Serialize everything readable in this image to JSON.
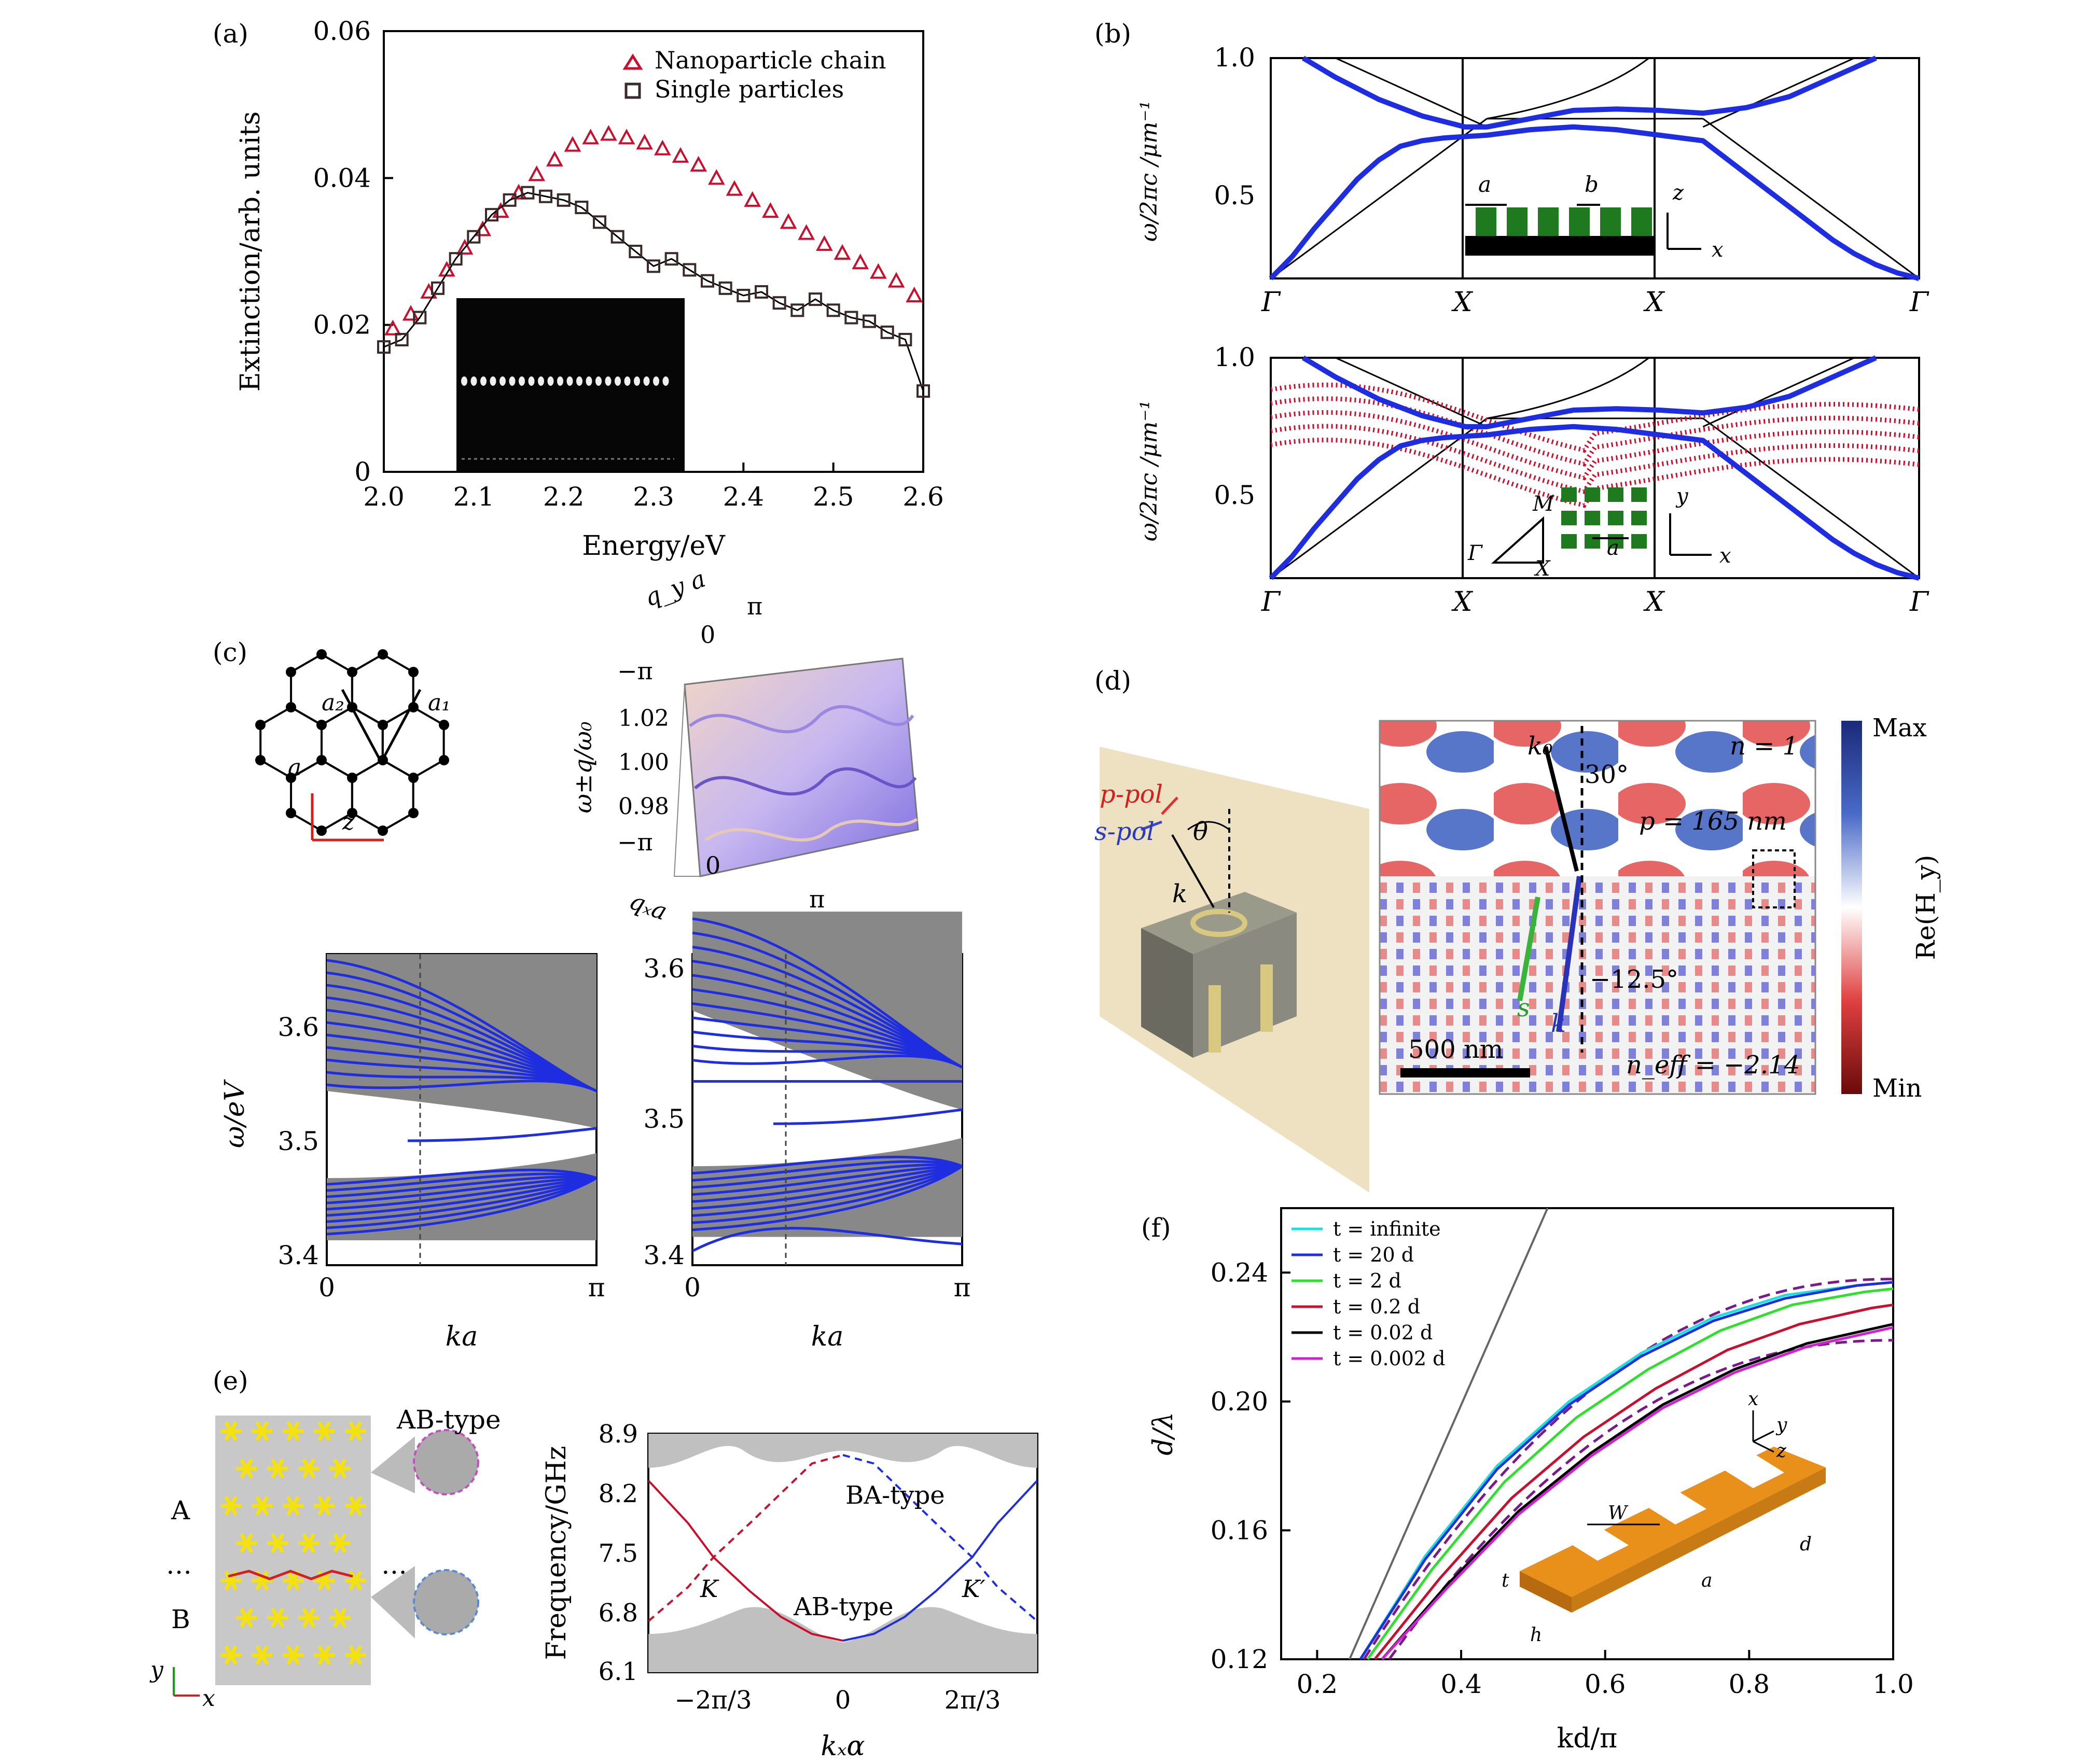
{
  "panels": {
    "a": "(a)",
    "b": "(b)",
    "c": "(c)",
    "d": "(d)",
    "e": "(e)",
    "f": "(f)"
  },
  "colors": {
    "red": "#c8102e",
    "blue": "#1f2de0",
    "grey": "#c0c0c0",
    "green": "#1a7f1a",
    "purple": "#7a1a8a",
    "cyan": "#19e0e0",
    "lime": "#2ee02e",
    "magenta": "#d020d0",
    "orange": "#e8901a"
  },
  "chart_data": [
    {
      "id": "a",
      "type": "scatter",
      "xlabel": "Energy/eV",
      "ylabel": "Extinction/arb. units",
      "xlim": [
        2.0,
        2.6
      ],
      "ylim": [
        0,
        0.06
      ],
      "xticks": [
        "2.0",
        "2.1",
        "2.2",
        "2.3",
        "2.4",
        "2.5",
        "2.6"
      ],
      "yticks": [
        "0",
        "0.02",
        "0.04",
        "0.06"
      ],
      "legend": [
        "Nanoparticle chain",
        "Single particles"
      ],
      "legend_position": "top-right",
      "series": [
        {
          "name": "Nanoparticle chain",
          "marker": "triangle",
          "x": [
            2.01,
            2.03,
            2.05,
            2.07,
            2.09,
            2.11,
            2.13,
            2.15,
            2.17,
            2.19,
            2.21,
            2.23,
            2.25,
            2.27,
            2.29,
            2.31,
            2.33,
            2.35,
            2.37,
            2.39,
            2.41,
            2.43,
            2.45,
            2.47,
            2.49,
            2.51,
            2.53,
            2.55,
            2.57,
            2.59
          ],
          "y": [
            0.0195,
            0.0215,
            0.0245,
            0.0275,
            0.0305,
            0.033,
            0.0355,
            0.038,
            0.0405,
            0.0425,
            0.0445,
            0.0455,
            0.046,
            0.0455,
            0.0448,
            0.044,
            0.043,
            0.0418,
            0.04,
            0.0385,
            0.037,
            0.0355,
            0.034,
            0.0325,
            0.031,
            0.0298,
            0.0285,
            0.0272,
            0.026,
            0.024
          ]
        },
        {
          "name": "Single particles",
          "marker": "square",
          "x": [
            2.0,
            2.02,
            2.04,
            2.06,
            2.08,
            2.1,
            2.12,
            2.14,
            2.16,
            2.18,
            2.2,
            2.22,
            2.24,
            2.26,
            2.28,
            2.3,
            2.32,
            2.34,
            2.36,
            2.38,
            2.4,
            2.42,
            2.44,
            2.46,
            2.48,
            2.5,
            2.52,
            2.54,
            2.56,
            2.58,
            2.6
          ],
          "y": [
            0.017,
            0.018,
            0.021,
            0.025,
            0.029,
            0.032,
            0.035,
            0.037,
            0.038,
            0.0375,
            0.037,
            0.036,
            0.034,
            0.032,
            0.03,
            0.028,
            0.029,
            0.0275,
            0.026,
            0.025,
            0.024,
            0.0245,
            0.023,
            0.022,
            0.0235,
            0.022,
            0.021,
            0.0205,
            0.019,
            0.018,
            0.011
          ]
        }
      ],
      "inset": "SEM image of nanoparticle chain"
    },
    {
      "id": "b-top",
      "type": "line",
      "ylabel": "ω/2πc /μm⁻¹",
      "ylim": [
        0.2,
        1.0
      ],
      "yticks": [
        "0.5",
        "1.0"
      ],
      "xticks": [
        "Γ",
        "X",
        "X",
        "Γ"
      ],
      "inset_labels": [
        "a",
        "b",
        "z",
        "x"
      ],
      "series": [
        {
          "name": "band1",
          "color": "blue",
          "x": [
            0,
            0.1,
            0.2,
            0.3,
            0.4,
            0.5,
            0.6,
            0.7,
            0.8,
            0.9,
            1.0,
            1.2,
            1.4,
            1.6,
            1.8,
            2.0,
            2.1,
            2.2,
            2.3,
            2.4,
            2.5,
            2.6,
            2.7,
            2.8,
            2.9,
            3.0
          ],
          "y": [
            0.2,
            0.28,
            0.38,
            0.47,
            0.56,
            0.63,
            0.68,
            0.7,
            0.71,
            0.715,
            0.72,
            0.74,
            0.75,
            0.74,
            0.72,
            0.7,
            0.64,
            0.58,
            0.52,
            0.46,
            0.4,
            0.34,
            0.29,
            0.25,
            0.22,
            0.2
          ]
        },
        {
          "name": "band2",
          "color": "blue",
          "x": [
            0.15,
            0.3,
            0.5,
            0.7,
            0.9,
            1.0,
            1.2,
            1.4,
            1.6,
            1.8,
            2.0,
            2.2,
            2.4,
            2.6,
            2.8
          ],
          "y": [
            1.0,
            0.93,
            0.85,
            0.79,
            0.75,
            0.75,
            0.78,
            0.81,
            0.815,
            0.81,
            0.8,
            0.82,
            0.86,
            0.93,
            1.0
          ]
        }
      ]
    },
    {
      "id": "b-bottom",
      "type": "line",
      "ylabel": "ω/2πc /μm⁻¹",
      "ylim": [
        0.2,
        1.0
      ],
      "yticks": [
        "0.5",
        "1.0"
      ],
      "xticks": [
        "Γ",
        "X",
        "X",
        "Γ"
      ],
      "inset_labels": [
        "M",
        "Γ",
        "X",
        "a",
        "y",
        "x"
      ]
    },
    {
      "id": "c-3d",
      "type": "surface",
      "xlabel": "qₓa",
      "ylabel": "q_y a",
      "zlabel": "ω±q/ω₀",
      "zticks": [
        "0.98",
        "1.00",
        "1.02"
      ],
      "xticks_3d": [
        "−π",
        "0",
        "π"
      ],
      "yticks_3d": [
        "0",
        "π",
        "−π"
      ]
    },
    {
      "id": "c-left",
      "type": "line",
      "ylabel": "ω/eV",
      "xlabel": "ka",
      "ylim": [
        3.4,
        3.65
      ],
      "yticks": [
        "3.4",
        "3.5",
        "3.6"
      ],
      "xticks": [
        "0",
        "π"
      ]
    },
    {
      "id": "c-right",
      "type": "line",
      "xlabel": "ka",
      "ylim": [
        3.4,
        3.62
      ],
      "yticks": [
        "3.4",
        "3.5",
        "3.6"
      ],
      "xticks": [
        "0",
        "π"
      ]
    },
    {
      "id": "e",
      "type": "line",
      "xlabel": "kₓα",
      "ylabel": "Frequency/GHz",
      "ylim": [
        6.1,
        8.9
      ],
      "yticks": [
        "6.1",
        "6.8",
        "7.5",
        "8.2",
        "8.9"
      ],
      "xticks": [
        "−2π/3",
        "0",
        "2π/3"
      ],
      "annotations": [
        "BA-type",
        "AB-type",
        "K",
        "K′"
      ],
      "series": [
        {
          "name": "AB-red-solid",
          "color": "red",
          "x": [
            -3.14,
            -2.5,
            -2.09,
            -1.5,
            -1.0,
            -0.5,
            0
          ],
          "y": [
            8.35,
            7.85,
            7.45,
            7.05,
            6.75,
            6.55,
            6.47
          ]
        },
        {
          "name": "AB-blue-solid",
          "color": "blue",
          "x": [
            0,
            0.5,
            1.0,
            1.5,
            2.09,
            2.5,
            3.14
          ],
          "y": [
            6.47,
            6.55,
            6.75,
            7.05,
            7.45,
            7.85,
            8.35
          ]
        },
        {
          "name": "BA-red-dashed",
          "color": "red",
          "x": [
            -3.14,
            -2.5,
            -2.09,
            -1.5,
            -1.0,
            -0.5,
            0
          ],
          "y": [
            6.7,
            7.1,
            7.45,
            7.85,
            8.2,
            8.55,
            8.65
          ]
        },
        {
          "name": "BA-blue-dashed",
          "color": "blue",
          "x": [
            0,
            0.5,
            1.0,
            1.5,
            2.09,
            2.5,
            3.14
          ],
          "y": [
            8.65,
            8.55,
            8.2,
            7.85,
            7.45,
            7.1,
            6.7
          ]
        }
      ]
    },
    {
      "id": "f",
      "type": "line",
      "xlabel": "kd/π",
      "ylabel": "d/λ",
      "xlim": [
        0.15,
        1.0
      ],
      "ylim": [
        0.12,
        0.26
      ],
      "xticks": [
        "0.2",
        "0.4",
        "0.6",
        "0.8",
        "1.0"
      ],
      "yticks": [
        "0.12",
        "0.16",
        "0.20",
        "0.24"
      ],
      "legend_position": "top-left",
      "series": [
        {
          "name": "t = infinite",
          "color": "cyan",
          "x": [
            0.26,
            0.35,
            0.45,
            0.55,
            0.65,
            0.75,
            0.85,
            0.95,
            1.0
          ],
          "y": [
            0.12,
            0.152,
            0.18,
            0.2,
            0.215,
            0.226,
            0.233,
            0.236,
            0.237
          ]
        },
        {
          "name": "t = 20 d",
          "color": "blue",
          "x": [
            0.26,
            0.35,
            0.45,
            0.55,
            0.65,
            0.75,
            0.85,
            0.95,
            1.0
          ],
          "y": [
            0.12,
            0.151,
            0.179,
            0.199,
            0.214,
            0.225,
            0.232,
            0.236,
            0.237
          ]
        },
        {
          "name": "t = 2 d",
          "color": "lime",
          "x": [
            0.27,
            0.36,
            0.46,
            0.56,
            0.66,
            0.76,
            0.86,
            0.96,
            1.0
          ],
          "y": [
            0.12,
            0.148,
            0.175,
            0.195,
            0.21,
            0.222,
            0.23,
            0.234,
            0.235
          ]
        },
        {
          "name": "t = 0.2 d",
          "color": "red",
          "x": [
            0.28,
            0.37,
            0.47,
            0.57,
            0.67,
            0.77,
            0.87,
            0.97,
            1.0
          ],
          "y": [
            0.12,
            0.145,
            0.17,
            0.189,
            0.204,
            0.216,
            0.224,
            0.229,
            0.23
          ]
        },
        {
          "name": "t = 0.02 d",
          "color": "black",
          "x": [
            0.29,
            0.38,
            0.48,
            0.58,
            0.68,
            0.78,
            0.88,
            0.98,
            1.0
          ],
          "y": [
            0.12,
            0.143,
            0.166,
            0.184,
            0.199,
            0.21,
            0.218,
            0.223,
            0.224
          ]
        },
        {
          "name": "t = 0.002 d",
          "color": "magenta",
          "x": [
            0.29,
            0.38,
            0.48,
            0.58,
            0.68,
            0.78,
            0.88,
            0.98,
            1.0
          ],
          "y": [
            0.12,
            0.142,
            0.165,
            0.183,
            0.198,
            0.209,
            0.217,
            0.222,
            0.223
          ]
        }
      ],
      "inset_labels": [
        "x",
        "y",
        "z",
        "W",
        "t",
        "h",
        "a",
        "d"
      ]
    }
  ],
  "d": {
    "labels": {
      "p_pol": "p-pol",
      "s_pol": "s-pol",
      "theta": "θ",
      "k": "k",
      "k0": "k₀",
      "angle30": "30°",
      "n": "n = 1",
      "period": "p = 165 nm",
      "angle_neg": "−12.5°",
      "s": "s",
      "k_low": "k",
      "scale": "500 nm",
      "neff": "n_eff = −2.14",
      "max": "Max",
      "min": "Min",
      "colorbar": "Re(H_y)"
    }
  },
  "e_inset": {
    "title": "AB-type",
    "A": "A",
    "dots": "…",
    "B": "B",
    "axis_y": "y",
    "axis_x": "x"
  },
  "c_lattice": {
    "a1": "a₁",
    "a2": "a₂",
    "a": "a",
    "z": "z"
  }
}
